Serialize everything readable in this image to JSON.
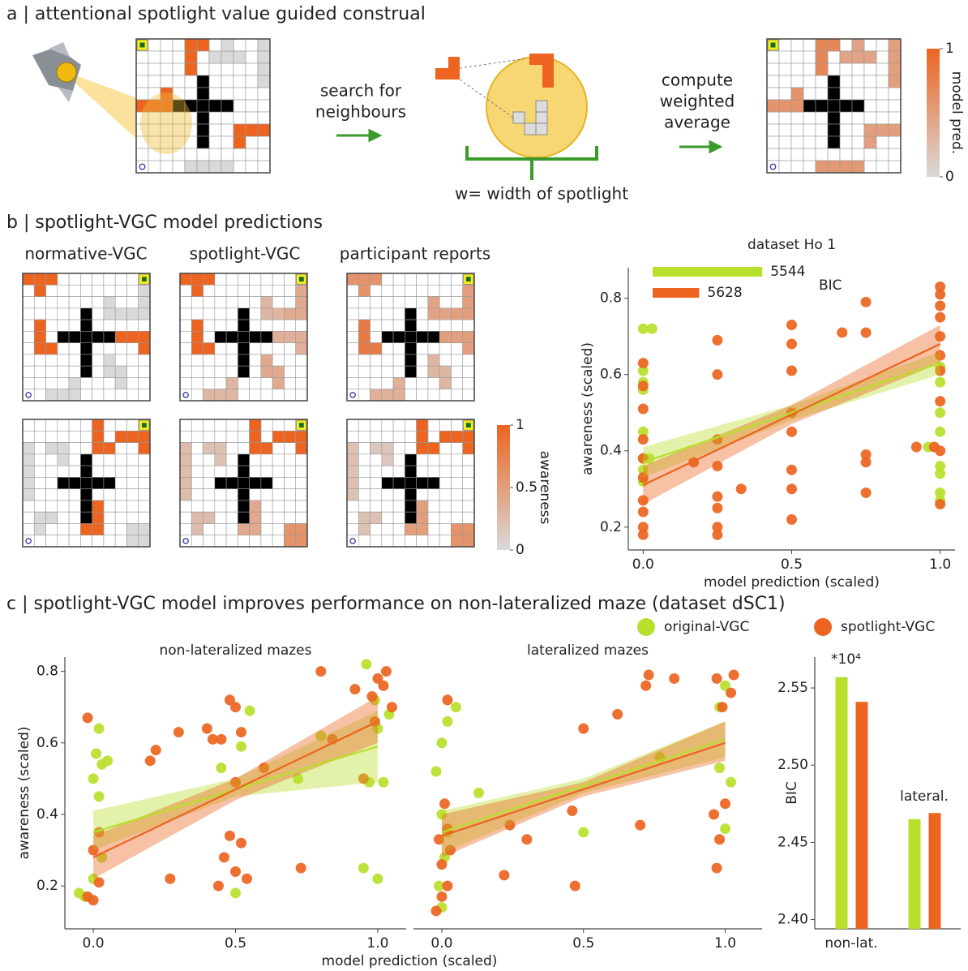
{
  "panel_a": {
    "title": "a | attentional spotlight value guided construal",
    "step_1": [
      "search for",
      "neighbours"
    ],
    "step_2": [
      "compute",
      "weighted",
      "average"
    ],
    "bracket_label": "w= width of spotlight",
    "colorbar": {
      "label": "model pred.",
      "ticks": [
        0,
        1
      ]
    }
  },
  "panel_b": {
    "title": "b | spotlight-VGC model predictions",
    "columns": [
      "normative-VGC",
      "spotlight-VGC",
      "participant reports"
    ],
    "colorbar": {
      "label": "awareness",
      "ticks": [
        0,
        0.5,
        1
      ]
    }
  },
  "panel_c": {
    "title": "c | spotlight-VGC model improves performance on non-lateralized maze (dataset dSC1)"
  },
  "chart_data": [
    {
      "type": "scatter",
      "title": "dataset Ho 1",
      "xlabel": "model prediction (scaled)",
      "ylabel": "awareness (scaled)",
      "xlim": [
        -0.05,
        1.05
      ],
      "ylim": [
        0.14,
        0.88
      ],
      "xticks": [
        {
          "value": 0,
          "label": "0.0"
        },
        {
          "value": 0.5,
          "label": "0.5"
        },
        {
          "value": 1,
          "label": "1.0"
        }
      ],
      "yticks": [
        0.2,
        0.4,
        0.6,
        0.8
      ],
      "series": [
        {
          "color": "#b8df2b",
          "x": [
            0,
            0,
            0,
            0,
            0,
            0,
            0,
            0,
            0.02,
            0.03,
            1,
            1,
            1,
            1,
            1,
            1,
            1,
            1,
            0.96
          ],
          "values": [
            0.72,
            0.61,
            0.58,
            0.56,
            0.45,
            0.38,
            0.35,
            0.32,
            0.38,
            0.72,
            0.27,
            0.29,
            0.34,
            0.36,
            0.45,
            0.5,
            0.58,
            0.62,
            0.41
          ],
          "fit": {
            "x": [
              0,
              0.5,
              1
            ],
            "values": [
              0.37,
              0.5,
              0.63
            ],
            "lower": [
              0.33,
              0.48,
              0.6
            ],
            "upper": [
              0.41,
              0.52,
              0.66
            ]
          }
        },
        {
          "color": "#ec6420",
          "x": [
            0,
            0,
            0,
            0,
            0,
            0,
            0,
            0,
            0,
            0,
            0.25,
            0.25,
            0.25,
            0.25,
            0.25,
            0.25,
            0.25,
            0.25,
            0.5,
            0.5,
            0.5,
            0.5,
            0.5,
            0.5,
            0.5,
            0.5,
            0.75,
            0.75,
            0.75,
            0.75,
            0.75,
            1,
            1,
            1,
            1,
            1,
            1,
            1,
            1,
            1,
            1,
            0.17,
            0.33,
            0.67,
            0.92,
            0.98
          ],
          "values": [
            0.18,
            0.2,
            0.24,
            0.27,
            0.33,
            0.38,
            0.43,
            0.51,
            0.57,
            0.63,
            0.18,
            0.2,
            0.25,
            0.28,
            0.36,
            0.43,
            0.6,
            0.69,
            0.22,
            0.3,
            0.35,
            0.45,
            0.5,
            0.61,
            0.68,
            0.73,
            0.29,
            0.37,
            0.39,
            0.71,
            0.79,
            0.26,
            0.4,
            0.53,
            0.61,
            0.65,
            0.7,
            0.75,
            0.78,
            0.81,
            0.83,
            0.37,
            0.3,
            0.71,
            0.41,
            0.41
          ],
          "fit": {
            "x": [
              0,
              0.5,
              1
            ],
            "values": [
              0.31,
              0.495,
              0.68
            ],
            "lower": [
              0.26,
              0.47,
              0.63
            ],
            "upper": [
              0.36,
              0.52,
              0.73
            ]
          }
        }
      ],
      "inset": {
        "label": "BIC",
        "values": [
          5544,
          5628
        ],
        "colors": [
          "#b8df2b",
          "#ec6420"
        ],
        "xlim": [
          5690,
          5500
        ]
      }
    },
    {
      "type": "scatter",
      "title": "non-lateralized mazes",
      "xlabel": "model prediction (scaled)",
      "ylabel": "awareness (scaled)",
      "xlim": [
        -0.1,
        1.1
      ],
      "ylim": [
        0.08,
        0.84
      ],
      "xticks": [
        {
          "value": 0,
          "label": "0.0"
        },
        {
          "value": 0.5,
          "label": "0.5"
        },
        {
          "value": 1,
          "label": "1.0"
        }
      ],
      "yticks": [
        0.2,
        0.4,
        0.6,
        0.8
      ],
      "series": [
        {
          "name": "original-VGC",
          "color": "#b8df2b",
          "x": [
            -0.05,
            0,
            0.03,
            0.02,
            0,
            0.03,
            0.01,
            0.05,
            0.02,
            -0.03,
            0.5,
            0.45,
            0.52,
            0.55,
            0.72,
            0.95,
            1,
            0.97,
            1.02,
            0.96,
            1,
            1.04,
            0.99,
            0.8
          ],
          "values": [
            0.18,
            0.22,
            0.28,
            0.45,
            0.5,
            0.54,
            0.57,
            0.55,
            0.64,
            0.17,
            0.18,
            0.53,
            0.59,
            0.69,
            0.5,
            0.25,
            0.22,
            0.49,
            0.49,
            0.82,
            0.64,
            0.68,
            0.72,
            0.62
          ],
          "fit": {
            "x": [
              0,
              0.5,
              1
            ],
            "values": [
              0.35,
              0.47,
              0.59
            ],
            "lower": [
              0.3,
              0.45,
              0.49
            ],
            "upper": [
              0.41,
              0.5,
              0.69
            ]
          }
        },
        {
          "name": "spotlight-VGC",
          "color": "#ec6420",
          "x": [
            0,
            0.02,
            -0.02,
            0,
            0.02,
            -0.02,
            0.27,
            0.2,
            0.22,
            0.3,
            0.4,
            0.42,
            0.45,
            0.48,
            0.5,
            0.52,
            0.5,
            0.48,
            0.52,
            0.46,
            0.5,
            0.54,
            0.44,
            0.73,
            0.8,
            0.92,
            0.95,
            0.98,
            1,
            1.03,
            1.05,
            0.99,
            1.02,
            0.6,
            0.84
          ],
          "values": [
            0.16,
            0.21,
            0.17,
            0.3,
            0.35,
            0.67,
            0.22,
            0.55,
            0.58,
            0.63,
            0.64,
            0.61,
            0.61,
            0.72,
            0.7,
            0.63,
            0.49,
            0.34,
            0.32,
            0.28,
            0.24,
            0.22,
            0.2,
            0.25,
            0.8,
            0.75,
            0.5,
            0.73,
            0.78,
            0.8,
            0.7,
            0.66,
            0.76,
            0.53,
            0.61
          ],
          "fit": {
            "x": [
              0,
              0.5,
              1
            ],
            "values": [
              0.28,
              0.47,
              0.66
            ],
            "lower": [
              0.22,
              0.44,
              0.6
            ],
            "upper": [
              0.34,
              0.5,
              0.73
            ]
          }
        }
      ]
    },
    {
      "type": "scatter",
      "title": "lateralized mazes",
      "xlim": [
        -0.1,
        1.13
      ],
      "ylim": [
        0.08,
        0.84
      ],
      "xticks": [
        {
          "value": 0,
          "label": "0.0"
        },
        {
          "value": 0.5,
          "label": "0.5"
        },
        {
          "value": 1,
          "label": "1.0"
        }
      ],
      "series": [
        {
          "color": "#b8df2b",
          "x": [
            0,
            -0.01,
            0.01,
            0.02,
            0,
            -0.02,
            0,
            0.02,
            0.05,
            0.13,
            0.5,
            0.77,
            0.98,
            1.02,
            1,
            0.98,
            1
          ],
          "values": [
            0.14,
            0.2,
            0.28,
            0.35,
            0.4,
            0.52,
            0.6,
            0.66,
            0.7,
            0.46,
            0.35,
            0.56,
            0.53,
            0.49,
            0.36,
            0.7,
            0.76
          ],
          "fit": {
            "x": [
              0,
              0.5,
              1
            ],
            "values": [
              0.35,
              0.48,
              0.61
            ],
            "lower": [
              0.29,
              0.46,
              0.56
            ],
            "upper": [
              0.41,
              0.5,
              0.66
            ]
          }
        },
        {
          "color": "#ec6420",
          "x": [
            -0.02,
            0,
            0.02,
            0,
            0.03,
            -0.01,
            0.02,
            0.01,
            0.02,
            0.22,
            0.24,
            0.3,
            0.47,
            0.46,
            0.5,
            0.62,
            0.7,
            0.73,
            0.72,
            0.82,
            0.97,
            0.98,
            0.96,
            1,
            0.99,
            1.02,
            0.97,
            1.03
          ],
          "values": [
            0.13,
            0.17,
            0.2,
            0.26,
            0.3,
            0.33,
            0.36,
            0.43,
            0.72,
            0.23,
            0.37,
            0.33,
            0.2,
            0.41,
            0.64,
            0.68,
            0.37,
            0.79,
            0.76,
            0.78,
            0.25,
            0.33,
            0.4,
            0.43,
            0.7,
            0.74,
            0.78,
            0.79
          ],
          "fit": {
            "x": [
              0,
              0.5,
              1
            ],
            "values": [
              0.34,
              0.47,
              0.6
            ],
            "lower": [
              0.28,
              0.45,
              0.55
            ],
            "upper": [
              0.4,
              0.49,
              0.66
            ]
          }
        }
      ]
    },
    {
      "type": "bar",
      "ylabel": "BIC",
      "scale_label": "*10⁴",
      "categories": [
        "non-lat.",
        "lateral."
      ],
      "ylim": [
        2.394,
        2.57
      ],
      "yticks": [
        {
          "value": 2.4,
          "label": "2.40"
        },
        2.45,
        {
          "value": 2.5,
          "label": "2.50"
        },
        2.55
      ],
      "series": [
        {
          "color": "#b8df2b",
          "values": [
            2.557,
            2.465
          ]
        },
        {
          "color": "#ec6420",
          "values": [
            2.541,
            2.469
          ]
        }
      ]
    }
  ]
}
